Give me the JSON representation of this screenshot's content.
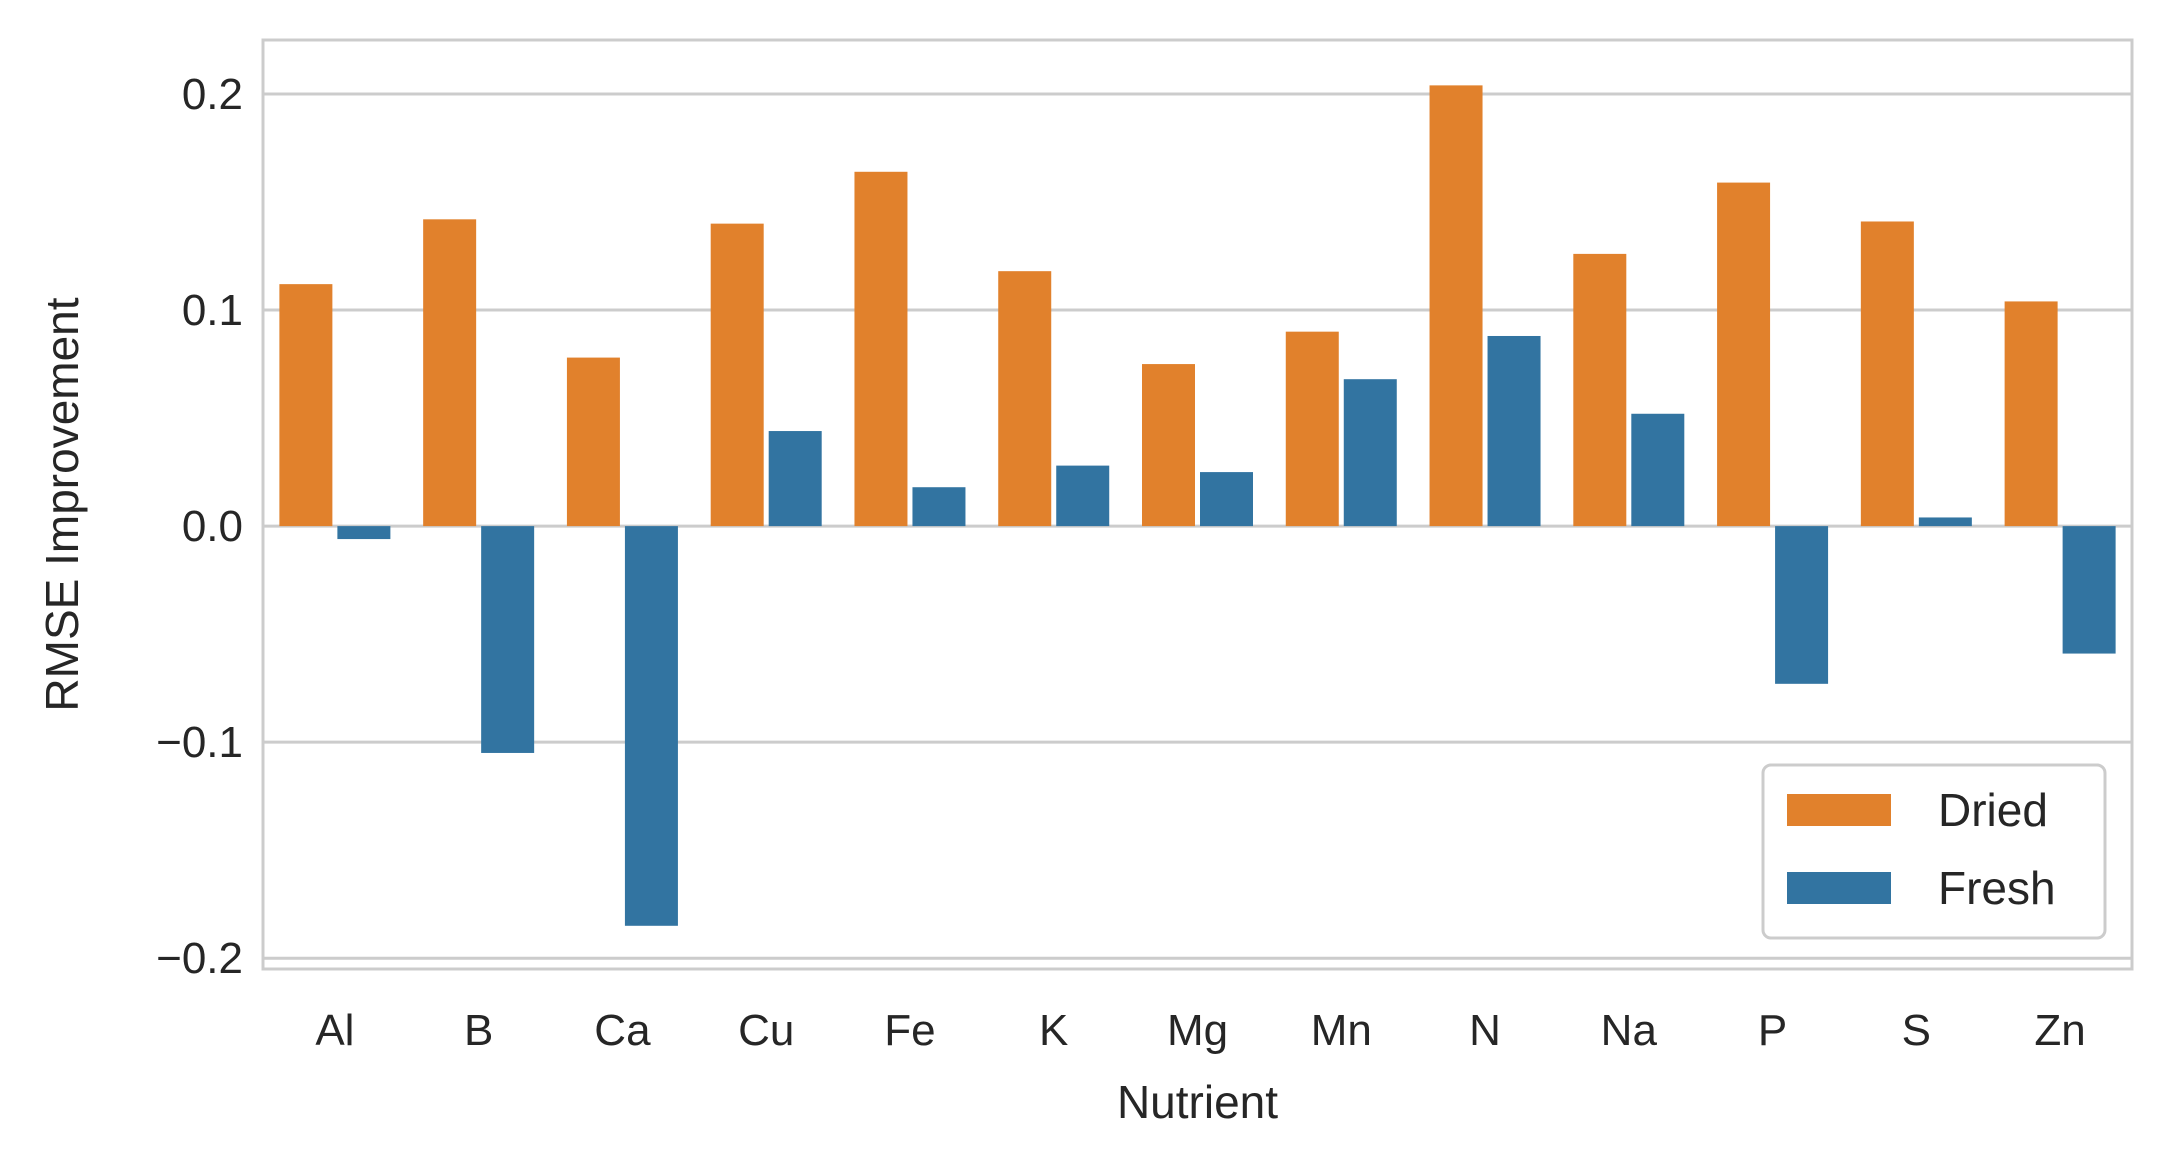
{
  "chart_data": {
    "type": "bar",
    "title": "",
    "xlabel": "Nutrient",
    "ylabel": "RMSE Improvement",
    "categories": [
      "Al",
      "B",
      "Ca",
      "Cu",
      "Fe",
      "K",
      "Mg",
      "Mn",
      "N",
      "Na",
      "P",
      "S",
      "Zn"
    ],
    "series": [
      {
        "name": "Dried",
        "color": "#e1812c",
        "values": [
          0.112,
          0.142,
          0.078,
          0.14,
          0.164,
          0.118,
          0.075,
          0.09,
          0.204,
          0.126,
          0.159,
          0.141,
          0.104
        ]
      },
      {
        "name": "Fresh",
        "color": "#3274a1",
        "values": [
          -0.006,
          -0.105,
          -0.185,
          0.044,
          0.018,
          0.028,
          0.025,
          0.068,
          0.088,
          0.052,
          -0.073,
          0.004,
          -0.059
        ]
      }
    ],
    "ylim": [
      -0.205,
      0.225
    ],
    "yticks": [
      -0.2,
      -0.1,
      0.0,
      0.1,
      0.2
    ],
    "ytick_labels": [
      "−0.2",
      "−0.1",
      "0.0",
      "0.1",
      "0.2"
    ],
    "grid": "horizontal",
    "legend_position": "lower-right"
  }
}
